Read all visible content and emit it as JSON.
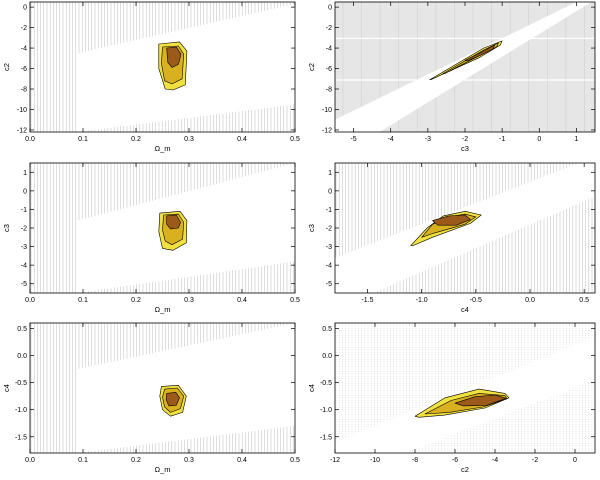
{
  "colors": {
    "hatch": "#b4b4b4",
    "shade": "#e6e6e6",
    "outer": "#f0e040",
    "middle": "#d9b020",
    "inner": "#9b5a1a",
    "edge": "#000000"
  },
  "chart_data": [
    {
      "type": "contour",
      "panel": "c2-vs-omega_m",
      "xlabel": "Ω_m",
      "ylabel": "c2",
      "xlim": [
        0.0,
        0.5
      ],
      "ylim": [
        -12.2,
        0.5
      ],
      "xticks": [
        0.0,
        0.1,
        0.2,
        0.3,
        0.4,
        0.5
      ],
      "xtick_labels": [
        "0.0",
        "0.1",
        "0.2",
        "0.3",
        "0.4",
        "0.5"
      ],
      "yticks": [
        -12,
        -10,
        -8,
        -6,
        -4,
        -2,
        0
      ],
      "ytick_labels": [
        "-12",
        "-10",
        "-8",
        "-6",
        "-4",
        "-2",
        "0"
      ],
      "background": "vertical-hatch",
      "allowed_region": [
        [
          0.09,
          -12.2
        ],
        [
          0.09,
          -4.5
        ],
        [
          0.5,
          0.3
        ],
        [
          0.5,
          -9.5
        ]
      ],
      "contours": [
        {
          "level": "outer",
          "points": [
            [
              0.243,
              -3.6
            ],
            [
              0.282,
              -3.4
            ],
            [
              0.296,
              -4.3
            ],
            [
              0.293,
              -7.6
            ],
            [
              0.27,
              -8.1
            ],
            [
              0.255,
              -8.0
            ],
            [
              0.243,
              -6.0
            ]
          ]
        },
        {
          "level": "middle",
          "points": [
            [
              0.25,
              -3.9
            ],
            [
              0.28,
              -3.8
            ],
            [
              0.29,
              -4.6
            ],
            [
              0.287,
              -7.0
            ],
            [
              0.268,
              -7.5
            ],
            [
              0.254,
              -7.2
            ],
            [
              0.248,
              -5.5
            ]
          ]
        },
        {
          "level": "inner",
          "points": [
            [
              0.258,
              -4.0
            ],
            [
              0.276,
              -3.9
            ],
            [
              0.285,
              -4.6
            ],
            [
              0.28,
              -5.6
            ],
            [
              0.268,
              -5.9
            ],
            [
              0.26,
              -5.4
            ]
          ]
        }
      ]
    },
    {
      "type": "contour",
      "panel": "c2-vs-c3",
      "xlabel": "c3",
      "ylabel": "c2",
      "xlim": [
        -5.5,
        1.5
      ],
      "ylim": [
        -12.2,
        0.5
      ],
      "xticks": [
        -5,
        -4,
        -3,
        -2,
        -1,
        0,
        1
      ],
      "xtick_labels": [
        "-5",
        "-4",
        "-3",
        "-2",
        "-1",
        "0",
        "1"
      ],
      "yticks": [
        -12,
        -10,
        -8,
        -6,
        -4,
        -2,
        0
      ],
      "ytick_labels": [
        "-12",
        "-10",
        "-8",
        "-6",
        "-4",
        "-2",
        "0"
      ],
      "background": "grey-shaded",
      "allowed_region": [
        [
          -5.5,
          -12.2
        ],
        [
          -4.3,
          -12.2
        ],
        [
          1.4,
          0.5
        ],
        [
          1.0,
          0.5
        ],
        [
          -5.5,
          -11.0
        ]
      ],
      "contours": [
        {
          "level": "outer",
          "points": [
            [
              -2.95,
              -7.1
            ],
            [
              -1.5,
              -4.0
            ],
            [
              -1.0,
              -3.3
            ],
            [
              -1.05,
              -3.7
            ],
            [
              -1.6,
              -4.9
            ],
            [
              -2.9,
              -7.05
            ]
          ]
        },
        {
          "level": "middle",
          "points": [
            [
              -2.6,
              -6.5
            ],
            [
              -1.5,
              -4.2
            ],
            [
              -1.1,
              -3.5
            ],
            [
              -1.15,
              -3.9
            ],
            [
              -1.7,
              -4.9
            ],
            [
              -2.55,
              -6.5
            ]
          ]
        },
        {
          "level": "inner",
          "points": [
            [
              -2.0,
              -5.2
            ],
            [
              -1.5,
              -4.3
            ],
            [
              -1.2,
              -3.7
            ],
            [
              -1.25,
              -4.1
            ],
            [
              -1.7,
              -4.9
            ],
            [
              -1.95,
              -5.25
            ]
          ]
        }
      ]
    },
    {
      "type": "contour",
      "panel": "c3-vs-omega_m",
      "xlabel": "Ω_m",
      "ylabel": "c3",
      "xlim": [
        0.0,
        0.5
      ],
      "ylim": [
        -5.5,
        1.5
      ],
      "xticks": [
        0.0,
        0.1,
        0.2,
        0.3,
        0.4,
        0.5
      ],
      "xtick_labels": [
        "0.0",
        "0.1",
        "0.2",
        "0.3",
        "0.4",
        "0.5"
      ],
      "yticks": [
        -5,
        -4,
        -3,
        -2,
        -1,
        0,
        1
      ],
      "ytick_labels": [
        "-5",
        "-4",
        "-3",
        "-2",
        "-1",
        "0",
        "1"
      ],
      "background": "vertical-hatch",
      "allowed_region": [
        [
          0.09,
          -5.5
        ],
        [
          0.09,
          -1.6
        ],
        [
          0.5,
          1.5
        ],
        [
          0.5,
          -3.8
        ]
      ],
      "contours": [
        {
          "level": "outer",
          "points": [
            [
              0.245,
              -1.2
            ],
            [
              0.283,
              -1.1
            ],
            [
              0.296,
              -1.6
            ],
            [
              0.295,
              -2.8
            ],
            [
              0.27,
              -3.2
            ],
            [
              0.25,
              -3.1
            ],
            [
              0.243,
              -2.2
            ]
          ]
        },
        {
          "level": "middle",
          "points": [
            [
              0.252,
              -1.3
            ],
            [
              0.28,
              -1.25
            ],
            [
              0.29,
              -1.7
            ],
            [
              0.288,
              -2.6
            ],
            [
              0.268,
              -2.9
            ],
            [
              0.255,
              -2.7
            ],
            [
              0.25,
              -2.1
            ]
          ]
        },
        {
          "level": "inner",
          "points": [
            [
              0.258,
              -1.35
            ],
            [
              0.276,
              -1.3
            ],
            [
              0.284,
              -1.7
            ],
            [
              0.28,
              -2.0
            ],
            [
              0.265,
              -2.05
            ],
            [
              0.258,
              -1.8
            ]
          ]
        }
      ]
    },
    {
      "type": "contour",
      "panel": "c3-vs-c4",
      "xlabel": "c4",
      "ylabel": "c3",
      "xlim": [
        -1.8,
        0.6
      ],
      "ylim": [
        -5.5,
        1.5
      ],
      "xticks": [
        -1.5,
        -1.0,
        -0.5,
        0.0,
        0.5
      ],
      "xtick_labels": [
        "-1.5",
        "-1.0",
        "-0.5",
        "0.0",
        "0.5"
      ],
      "yticks": [
        -5,
        -4,
        -3,
        -2,
        -1,
        0,
        1
      ],
      "ytick_labels": [
        "-5",
        "-4",
        "-3",
        "-2",
        "-1",
        "0",
        "1"
      ],
      "background": "vertical-hatch",
      "allowed_region": [
        [
          -1.8,
          -5.5
        ],
        [
          -1.45,
          -5.5
        ],
        [
          0.6,
          -0.3
        ],
        [
          0.6,
          1.5
        ],
        [
          0.45,
          1.5
        ],
        [
          -1.8,
          -3.6
        ]
      ],
      "contours": [
        {
          "level": "outer",
          "points": [
            [
              -1.1,
              -2.95
            ],
            [
              -0.95,
              -2.0
            ],
            [
              -0.8,
              -1.35
            ],
            [
              -0.6,
              -1.1
            ],
            [
              -0.45,
              -1.3
            ],
            [
              -0.55,
              -1.75
            ],
            [
              -0.9,
              -2.5
            ],
            [
              -1.08,
              -2.95
            ]
          ]
        },
        {
          "level": "middle",
          "points": [
            [
              -1.0,
              -2.5
            ],
            [
              -0.9,
              -1.8
            ],
            [
              -0.75,
              -1.4
            ],
            [
              -0.6,
              -1.25
            ],
            [
              -0.5,
              -1.4
            ],
            [
              -0.6,
              -1.8
            ],
            [
              -0.9,
              -2.3
            ]
          ]
        },
        {
          "level": "inner",
          "points": [
            [
              -0.9,
              -1.6
            ],
            [
              -0.75,
              -1.35
            ],
            [
              -0.6,
              -1.3
            ],
            [
              -0.55,
              -1.55
            ],
            [
              -0.68,
              -1.85
            ],
            [
              -0.85,
              -1.85
            ]
          ]
        }
      ]
    },
    {
      "type": "contour",
      "panel": "c4-vs-omega_m",
      "xlabel": "Ω_m",
      "ylabel": "c4",
      "xlim": [
        0.0,
        0.5
      ],
      "ylim": [
        -1.8,
        0.6
      ],
      "xticks": [
        0.0,
        0.1,
        0.2,
        0.3,
        0.4,
        0.5
      ],
      "xtick_labels": [
        "0.0",
        "0.1",
        "0.2",
        "0.3",
        "0.4",
        "0.5"
      ],
      "yticks": [
        -1.5,
        -1.0,
        -0.5,
        0.0,
        0.5
      ],
      "ytick_labels": [
        "-1.5",
        "-1.0",
        "-0.5",
        "0.0",
        "0.5"
      ],
      "background": "vertical-hatch",
      "allowed_region": [
        [
          0.09,
          -1.8
        ],
        [
          0.09,
          -0.25
        ],
        [
          0.5,
          0.6
        ],
        [
          0.5,
          -1.3
        ]
      ],
      "contours": [
        {
          "level": "outer",
          "points": [
            [
              0.248,
              -0.57
            ],
            [
              0.28,
              -0.55
            ],
            [
              0.295,
              -0.75
            ],
            [
              0.288,
              -1.05
            ],
            [
              0.265,
              -1.12
            ],
            [
              0.25,
              -1.0
            ],
            [
              0.245,
              -0.75
            ]
          ]
        },
        {
          "level": "middle",
          "points": [
            [
              0.254,
              -0.62
            ],
            [
              0.278,
              -0.6
            ],
            [
              0.29,
              -0.75
            ],
            [
              0.284,
              -0.98
            ],
            [
              0.265,
              -1.05
            ],
            [
              0.254,
              -0.95
            ],
            [
              0.25,
              -0.77
            ]
          ]
        },
        {
          "level": "inner",
          "points": [
            [
              0.258,
              -0.7
            ],
            [
              0.275,
              -0.68
            ],
            [
              0.282,
              -0.78
            ],
            [
              0.276,
              -0.92
            ],
            [
              0.262,
              -0.93
            ],
            [
              0.257,
              -0.82
            ]
          ]
        }
      ]
    },
    {
      "type": "contour",
      "panel": "c4-vs-c2",
      "xlabel": "c2",
      "ylabel": "c4",
      "xlim": [
        -12.0,
        1.0
      ],
      "ylim": [
        -1.8,
        0.6
      ],
      "xticks": [
        -12,
        -10,
        -8,
        -6,
        -4,
        -2,
        0
      ],
      "xtick_labels": [
        "-12",
        "-10",
        "-8",
        "-6",
        "-4",
        "-2",
        "0"
      ],
      "yticks": [
        -1.5,
        -1.0,
        -0.5,
        0.0,
        0.5
      ],
      "ytick_labels": [
        "-1.5",
        "-1.0",
        "-0.5",
        "0.0",
        "0.5"
      ],
      "background": "dotted-grid",
      "allowed_region": [
        [
          -12.0,
          -1.8
        ],
        [
          -12.0,
          -1.6
        ],
        [
          1.0,
          0.35
        ],
        [
          1.0,
          -0.45
        ],
        [
          -8.5,
          -1.8
        ]
      ],
      "contours": [
        {
          "level": "outer",
          "points": [
            [
              -8.0,
              -1.12
            ],
            [
              -6.5,
              -0.78
            ],
            [
              -4.8,
              -0.62
            ],
            [
              -3.5,
              -0.7
            ],
            [
              -3.3,
              -0.78
            ],
            [
              -4.5,
              -0.97
            ],
            [
              -6.5,
              -1.1
            ],
            [
              -7.8,
              -1.14
            ]
          ]
        },
        {
          "level": "middle",
          "points": [
            [
              -7.5,
              -1.08
            ],
            [
              -6.2,
              -0.83
            ],
            [
              -4.8,
              -0.7
            ],
            [
              -3.5,
              -0.74
            ],
            [
              -3.4,
              -0.8
            ],
            [
              -4.6,
              -0.95
            ],
            [
              -6.3,
              -1.05
            ]
          ]
        },
        {
          "level": "inner",
          "points": [
            [
              -6.0,
              -0.88
            ],
            [
              -5.0,
              -0.76
            ],
            [
              -4.0,
              -0.73
            ],
            [
              -3.45,
              -0.79
            ],
            [
              -4.4,
              -0.92
            ],
            [
              -5.6,
              -0.93
            ]
          ]
        }
      ]
    }
  ]
}
